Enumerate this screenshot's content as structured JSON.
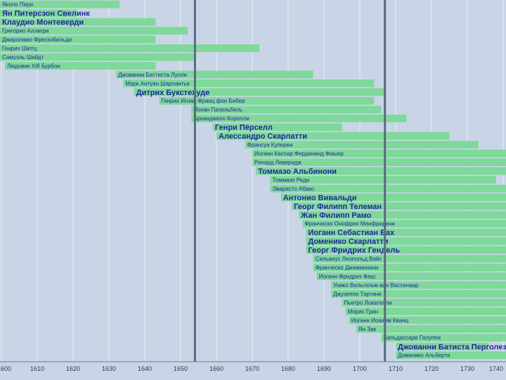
{
  "chart_data": {
    "type": "gantt-timeline",
    "title": "",
    "xlabel": "",
    "ylabel": "",
    "xlim": [
      1600,
      1740
    ],
    "x_ticks": [
      "1600",
      "1610",
      "1620",
      "1630",
      "1640",
      "1650",
      "1660",
      "1670",
      "1680",
      "1690",
      "1700",
      "1710",
      "1720",
      "1730",
      "1740"
    ],
    "markers": [
      1654,
      1707
    ],
    "colors": {
      "bar": "#7fd99a",
      "text": "#1b2a9a",
      "marker": "#5a6a80",
      "grid": "#ffffff",
      "background": "#c9d5e6"
    },
    "series": [
      {
        "name": "Якопо Пери",
        "start": 1561,
        "end": 1633,
        "size": "small"
      },
      {
        "name": "Ян Питерсзон Свелинк",
        "start": 1562,
        "end": 1621,
        "size": "large"
      },
      {
        "name": "Клаудио Монтеверди",
        "start": 1567,
        "end": 1643,
        "size": "large"
      },
      {
        "name": "Грегорио Аллегри",
        "start": 1582,
        "end": 1652,
        "size": "small"
      },
      {
        "name": "Джироламо Фрескобальди",
        "start": 1583,
        "end": 1643,
        "size": "small"
      },
      {
        "name": "Генрих Шютц",
        "start": 1585,
        "end": 1672,
        "size": "small"
      },
      {
        "name": "Самуэль Шейдт",
        "start": 1587,
        "end": 1654,
        "size": "small"
      },
      {
        "name": "Людовик XIII Бурбон",
        "start": 1601,
        "end": 1643,
        "size": "small"
      },
      {
        "name": "Джованни Баттиста Лулли",
        "start": 1632,
        "end": 1687,
        "size": "small"
      },
      {
        "name": "Марк Антуан Шарпантье",
        "start": 1634,
        "end": 1704,
        "size": "small"
      },
      {
        "name": "Дитрих Букстехуде",
        "start": 1637,
        "end": 1707,
        "size": "large"
      },
      {
        "name": "Генрих Игнац Франц фон Бибер",
        "start": 1644,
        "end": 1704,
        "size": "small"
      },
      {
        "name": "Йохан Пахельбель",
        "start": 1653,
        "end": 1706,
        "size": "small"
      },
      {
        "name": "Арканджело Корелли",
        "start": 1653,
        "end": 1713,
        "size": "small"
      },
      {
        "name": "Генри Пёрселл",
        "start": 1659,
        "end": 1695,
        "size": "large"
      },
      {
        "name": "Алессандро Скарлатти",
        "start": 1660,
        "end": 1725,
        "size": "large"
      },
      {
        "name": "Франсуа Куперен",
        "start": 1668,
        "end": 1733,
        "size": "small"
      },
      {
        "name": "Иоганн Каспар Фердинанд Фишер",
        "start": 1670,
        "end": 1746,
        "size": "small"
      },
      {
        "name": "Ричард Леверидж",
        "start": 1670,
        "end": 1758,
        "size": "small"
      },
      {
        "name": "Томмазо Альбинони",
        "start": 1671,
        "end": 1751,
        "size": "large"
      },
      {
        "name": "Томмазо Реди",
        "start": 1675,
        "end": 1738,
        "size": "small"
      },
      {
        "name": "Эваристо Абако",
        "start": 1675,
        "end": 1742,
        "size": "small"
      },
      {
        "name": "Антонио Вивальди",
        "start": 1678,
        "end": 1741,
        "size": "large"
      },
      {
        "name": "Георг Филипп Телеман",
        "start": 1681,
        "end": 1767,
        "size": "large"
      },
      {
        "name": "Жан Филипп Рамо",
        "start": 1683,
        "end": 1764,
        "size": "large"
      },
      {
        "name": "Франческо Онофрио Манфредини",
        "start": 1684,
        "end": 1762,
        "size": "small"
      },
      {
        "name": "Иоганн Себастиан Бах",
        "start": 1685,
        "end": 1750,
        "size": "large"
      },
      {
        "name": "Доменико Скарлатти",
        "start": 1685,
        "end": 1757,
        "size": "large"
      },
      {
        "name": "Георг Фридрих Гендель",
        "start": 1685,
        "end": 1759,
        "size": "large"
      },
      {
        "name": "Сильвиус Леопольд Вайс",
        "start": 1687,
        "end": 1750,
        "size": "small"
      },
      {
        "name": "Франческо Джеминиани",
        "start": 1687,
        "end": 1762,
        "size": "small"
      },
      {
        "name": "Иоганн Фридрих Фаш",
        "start": 1688,
        "end": 1758,
        "size": "small"
      },
      {
        "name": "Унико Вильгельм ван Вассенаар",
        "start": 1692,
        "end": 1766,
        "size": "small"
      },
      {
        "name": "Джузеппе Тартини",
        "start": 1692,
        "end": 1770,
        "size": "small"
      },
      {
        "name": "Пьетро Локателли",
        "start": 1695,
        "end": 1764,
        "size": "small"
      },
      {
        "name": "Морис Грин",
        "start": 1696,
        "end": 1755,
        "size": "small"
      },
      {
        "name": "Иоганн Иоахим Кванц",
        "start": 1697,
        "end": 1773,
        "size": "small"
      },
      {
        "name": "Ян Зак",
        "start": 1699,
        "end": 1773,
        "size": "small"
      },
      {
        "name": "Бальдассаре Галуппи",
        "start": 1706,
        "end": 1785,
        "size": "small"
      },
      {
        "name": "Джованни Батиста Перголези",
        "start": 1710,
        "end": 1736,
        "size": "large"
      },
      {
        "name": "Доменико Альберти",
        "start": 1710,
        "end": 1746,
        "size": "small"
      }
    ]
  }
}
